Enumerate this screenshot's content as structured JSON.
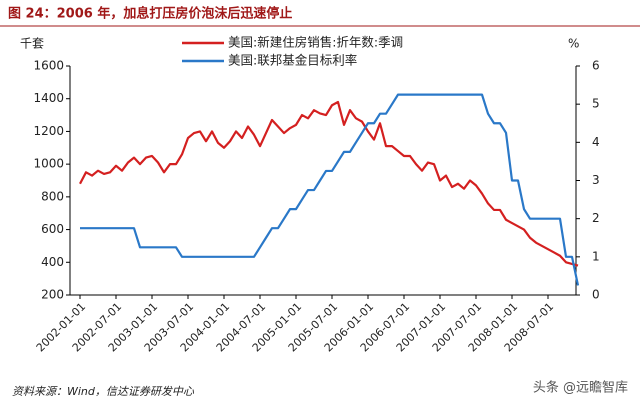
{
  "chart_data": {
    "type": "line",
    "title": "图 24：2006 年，加息打压房价泡沫后迅速停止",
    "y_label": "千套",
    "y2_label": "%",
    "source": "资料来源：Wind，信达证券研发中心",
    "watermark": "头条 @远瞻智库",
    "x": [
      "2002-01-01",
      "2002-02-01",
      "2002-03-01",
      "2002-04-01",
      "2002-05-01",
      "2002-06-01",
      "2002-07-01",
      "2002-08-01",
      "2002-09-01",
      "2002-10-01",
      "2002-11-01",
      "2002-12-01",
      "2003-01-01",
      "2003-02-01",
      "2003-03-01",
      "2003-04-01",
      "2003-05-01",
      "2003-06-01",
      "2003-07-01",
      "2003-08-01",
      "2003-09-01",
      "2003-10-01",
      "2003-11-01",
      "2003-12-01",
      "2004-01-01",
      "2004-02-01",
      "2004-03-01",
      "2004-04-01",
      "2004-05-01",
      "2004-06-01",
      "2004-07-01",
      "2004-08-01",
      "2004-09-01",
      "2004-10-01",
      "2004-11-01",
      "2004-12-01",
      "2005-01-01",
      "2005-02-01",
      "2005-03-01",
      "2005-04-01",
      "2005-05-01",
      "2005-06-01",
      "2005-07-01",
      "2005-08-01",
      "2005-09-01",
      "2005-10-01",
      "2005-11-01",
      "2005-12-01",
      "2006-01-01",
      "2006-02-01",
      "2006-03-01",
      "2006-04-01",
      "2006-05-01",
      "2006-06-01",
      "2006-07-01",
      "2006-08-01",
      "2006-09-01",
      "2006-10-01",
      "2006-11-01",
      "2006-12-01",
      "2007-01-01",
      "2007-02-01",
      "2007-03-01",
      "2007-04-01",
      "2007-05-01",
      "2007-06-01",
      "2007-07-01",
      "2007-08-01",
      "2007-09-01",
      "2007-10-01",
      "2007-11-01",
      "2007-12-01",
      "2008-01-01",
      "2008-02-01",
      "2008-03-01",
      "2008-04-01",
      "2008-05-01",
      "2008-06-01",
      "2008-07-01",
      "2008-08-01",
      "2008-09-01",
      "2008-10-01",
      "2008-11-01",
      "2008-12-01"
    ],
    "xticks": [
      "2002-01-01",
      "2002-07-01",
      "2003-01-01",
      "2003-07-01",
      "2004-01-01",
      "2004-07-01",
      "2005-01-01",
      "2005-07-01",
      "2006-01-01",
      "2006-07-01",
      "2007-01-01",
      "2007-07-01",
      "2008-01-01",
      "2008-07-01"
    ],
    "series": [
      {
        "name": "美国:新建住房销售:折年数:季调",
        "color": "#d42020",
        "values": [
          880,
          950,
          930,
          960,
          940,
          950,
          990,
          960,
          1010,
          1040,
          1000,
          1040,
          1050,
          1010,
          950,
          1000,
          1000,
          1060,
          1160,
          1190,
          1200,
          1140,
          1200,
          1130,
          1100,
          1140,
          1200,
          1160,
          1230,
          1180,
          1110,
          1190,
          1270,
          1230,
          1190,
          1220,
          1240,
          1300,
          1280,
          1330,
          1310,
          1300,
          1360,
          1380,
          1240,
          1330,
          1280,
          1260,
          1200,
          1150,
          1250,
          1110,
          1110,
          1080,
          1050,
          1050,
          1000,
          960,
          1010,
          1000,
          900,
          930,
          860,
          880,
          850,
          900,
          870,
          820,
          760,
          720,
          720,
          660,
          640,
          620,
          600,
          550,
          520,
          500,
          480,
          460,
          440,
          400,
          390,
          380
        ]
      },
      {
        "name": "美国:联邦基金目标利率",
        "color": "#2a78c8",
        "axis": "y2",
        "values": [
          1.75,
          1.75,
          1.75,
          1.75,
          1.75,
          1.75,
          1.75,
          1.75,
          1.75,
          1.75,
          1.25,
          1.25,
          1.25,
          1.25,
          1.25,
          1.25,
          1.25,
          1.0,
          1.0,
          1.0,
          1.0,
          1.0,
          1.0,
          1.0,
          1.0,
          1.0,
          1.0,
          1.0,
          1.0,
          1.0,
          1.25,
          1.5,
          1.75,
          1.75,
          2.0,
          2.25,
          2.25,
          2.5,
          2.75,
          2.75,
          3.0,
          3.25,
          3.25,
          3.5,
          3.75,
          3.75,
          4.0,
          4.25,
          4.5,
          4.5,
          4.75,
          4.75,
          5.0,
          5.25,
          5.25,
          5.25,
          5.25,
          5.25,
          5.25,
          5.25,
          5.25,
          5.25,
          5.25,
          5.25,
          5.25,
          5.25,
          5.25,
          5.25,
          4.75,
          4.5,
          4.5,
          4.25,
          3.0,
          3.0,
          2.25,
          2.0,
          2.0,
          2.0,
          2.0,
          2.0,
          2.0,
          1.0,
          1.0,
          0.25
        ]
      }
    ],
    "ylim": [
      200,
      1600
    ],
    "yticks": [
      200,
      400,
      600,
      800,
      1000,
      1200,
      1400,
      1600
    ],
    "y2lim": [
      0,
      6
    ],
    "y2ticks": [
      0,
      1,
      2,
      3,
      4,
      5,
      6
    ]
  }
}
